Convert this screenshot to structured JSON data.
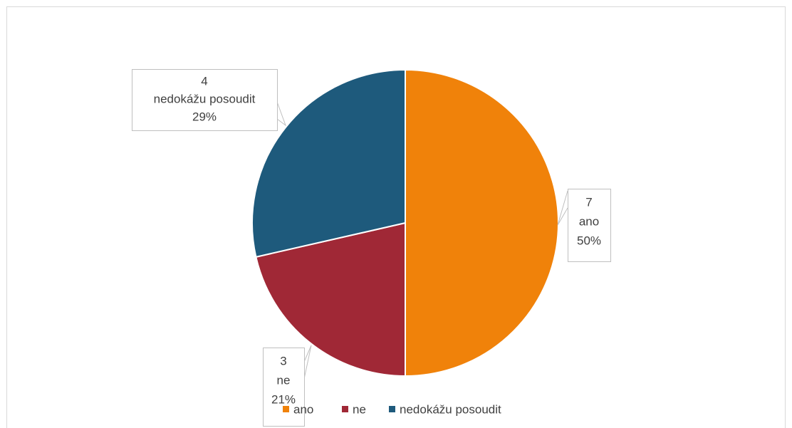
{
  "chart_data": {
    "type": "pie",
    "categories": [
      "ano",
      "ne",
      "nedokážu posoudit"
    ],
    "values": [
      7,
      3,
      4
    ],
    "percent_labels": [
      "50%",
      "21%",
      "29%"
    ],
    "colors": [
      "#f0820a",
      "#a02836",
      "#1e5a7c"
    ],
    "legend": "bottom"
  }
}
